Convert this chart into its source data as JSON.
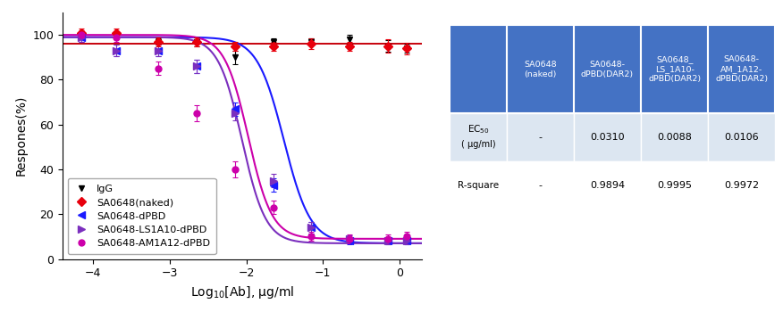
{
  "ylabel": "Respones(%)",
  "xlabel": "Log$_{10}$[Ab], μg/ml",
  "ylim": [
    0,
    110
  ],
  "xlim": [
    -4.4,
    0.3
  ],
  "xticks": [
    -4,
    -3,
    -2,
    -1,
    0
  ],
  "yticks": [
    0,
    20,
    40,
    60,
    80,
    100
  ],
  "series": {
    "IgG": {
      "color": "black",
      "marker": "v",
      "marker_size": 5,
      "x": [
        -4.15,
        -3.7,
        -3.15,
        -2.65,
        -2.15,
        -1.65,
        -1.15,
        -0.65,
        -0.15,
        0.1
      ],
      "y": [
        100,
        99,
        97,
        97,
        90,
        97,
        97,
        98,
        95,
        94
      ],
      "yerr": [
        1.5,
        1.0,
        1.5,
        2.0,
        3.0,
        1.5,
        1.5,
        2.0,
        2.5,
        2.0
      ],
      "fit": false,
      "flat_y": 96,
      "label": "IgG"
    },
    "SA0648(naked)": {
      "color": "#e8000d",
      "marker": "D",
      "marker_size": 5,
      "x": [
        -4.15,
        -3.7,
        -3.15,
        -2.65,
        -2.15,
        -1.65,
        -1.15,
        -0.65,
        -0.15,
        0.1
      ],
      "y": [
        101,
        101,
        97,
        97,
        95,
        95,
        96,
        95,
        95,
        94
      ],
      "yerr": [
        2.0,
        2.0,
        2.0,
        2.0,
        2.0,
        2.0,
        2.5,
        2.0,
        3.0,
        2.5
      ],
      "fit": false,
      "flat_y": 96,
      "label": "SA0648(naked)"
    },
    "SA0648-dPBD": {
      "color": "#1a1aff",
      "marker": "<",
      "marker_size": 6,
      "x": [
        -4.15,
        -3.7,
        -3.15,
        -2.65,
        -2.15,
        -1.65,
        -1.15,
        -0.65,
        -0.15,
        0.1
      ],
      "y": [
        99,
        93,
        93,
        86,
        67,
        33,
        14,
        8,
        8,
        8
      ],
      "yerr": [
        2.0,
        2.5,
        2.5,
        3.0,
        3.0,
        3.0,
        2.5,
        1.5,
        1.5,
        1.5
      ],
      "fit": true,
      "ec50_log": -1.509,
      "hill": 2.5,
      "top": 99,
      "bottom": 7,
      "label": "SA0648-dPBD"
    },
    "SA0648-LS1A10-dPBD": {
      "color": "#7b2fbe",
      "marker": ">",
      "marker_size": 6,
      "x": [
        -4.15,
        -3.7,
        -3.15,
        -2.65,
        -2.15,
        -1.65,
        -1.15,
        -0.65,
        -0.15,
        0.1
      ],
      "y": [
        99,
        93,
        93,
        86,
        65,
        35,
        14,
        9,
        8,
        8
      ],
      "yerr": [
        2.0,
        2.5,
        2.5,
        3.0,
        3.0,
        3.0,
        2.5,
        1.5,
        1.5,
        1.5
      ],
      "fit": true,
      "ec50_log": -2.056,
      "hill": 2.8,
      "top": 99,
      "bottom": 7,
      "label": "SA0648-LS1A10-dPBD"
    },
    "SA0648-AM1A12-dPBD": {
      "color": "#cc00aa",
      "marker": "o",
      "marker_size": 5,
      "x": [
        -4.15,
        -3.7,
        -3.15,
        -2.65,
        -2.15,
        -1.65,
        -1.15,
        -0.65,
        -0.15,
        0.1
      ],
      "y": [
        100,
        99,
        85,
        65,
        40,
        23,
        10,
        9,
        9,
        10
      ],
      "yerr": [
        2.0,
        2.0,
        3.0,
        3.5,
        3.5,
        3.0,
        2.0,
        2.0,
        2.0,
        2.0
      ],
      "fit": true,
      "ec50_log": -1.975,
      "hill": 2.8,
      "top": 100,
      "bottom": 9,
      "label": "SA0648-AM1A12-dPBD"
    }
  },
  "table": {
    "header_bg": "#4472c4",
    "header_text": "white",
    "row_bg_alt": "#dce6f1",
    "row_bg_main": "white",
    "col_headers": [
      "SA0648\n(naked)",
      "SA0648-\ndPBD(DAR2)",
      "SA0648_\nLS_1A10-\ndPBD(DAR2)",
      "SA0648-\nAM_1A12-\ndPBD(DAR2)"
    ],
    "row_labels": [
      "EC50_label",
      "R-square"
    ],
    "data": [
      [
        "-",
        "0.0310",
        "0.0088",
        "0.0106"
      ],
      [
        "-",
        "0.9894",
        "0.9995",
        "0.9972"
      ]
    ]
  },
  "legend_fontsize": 8,
  "axis_fontsize": 10
}
